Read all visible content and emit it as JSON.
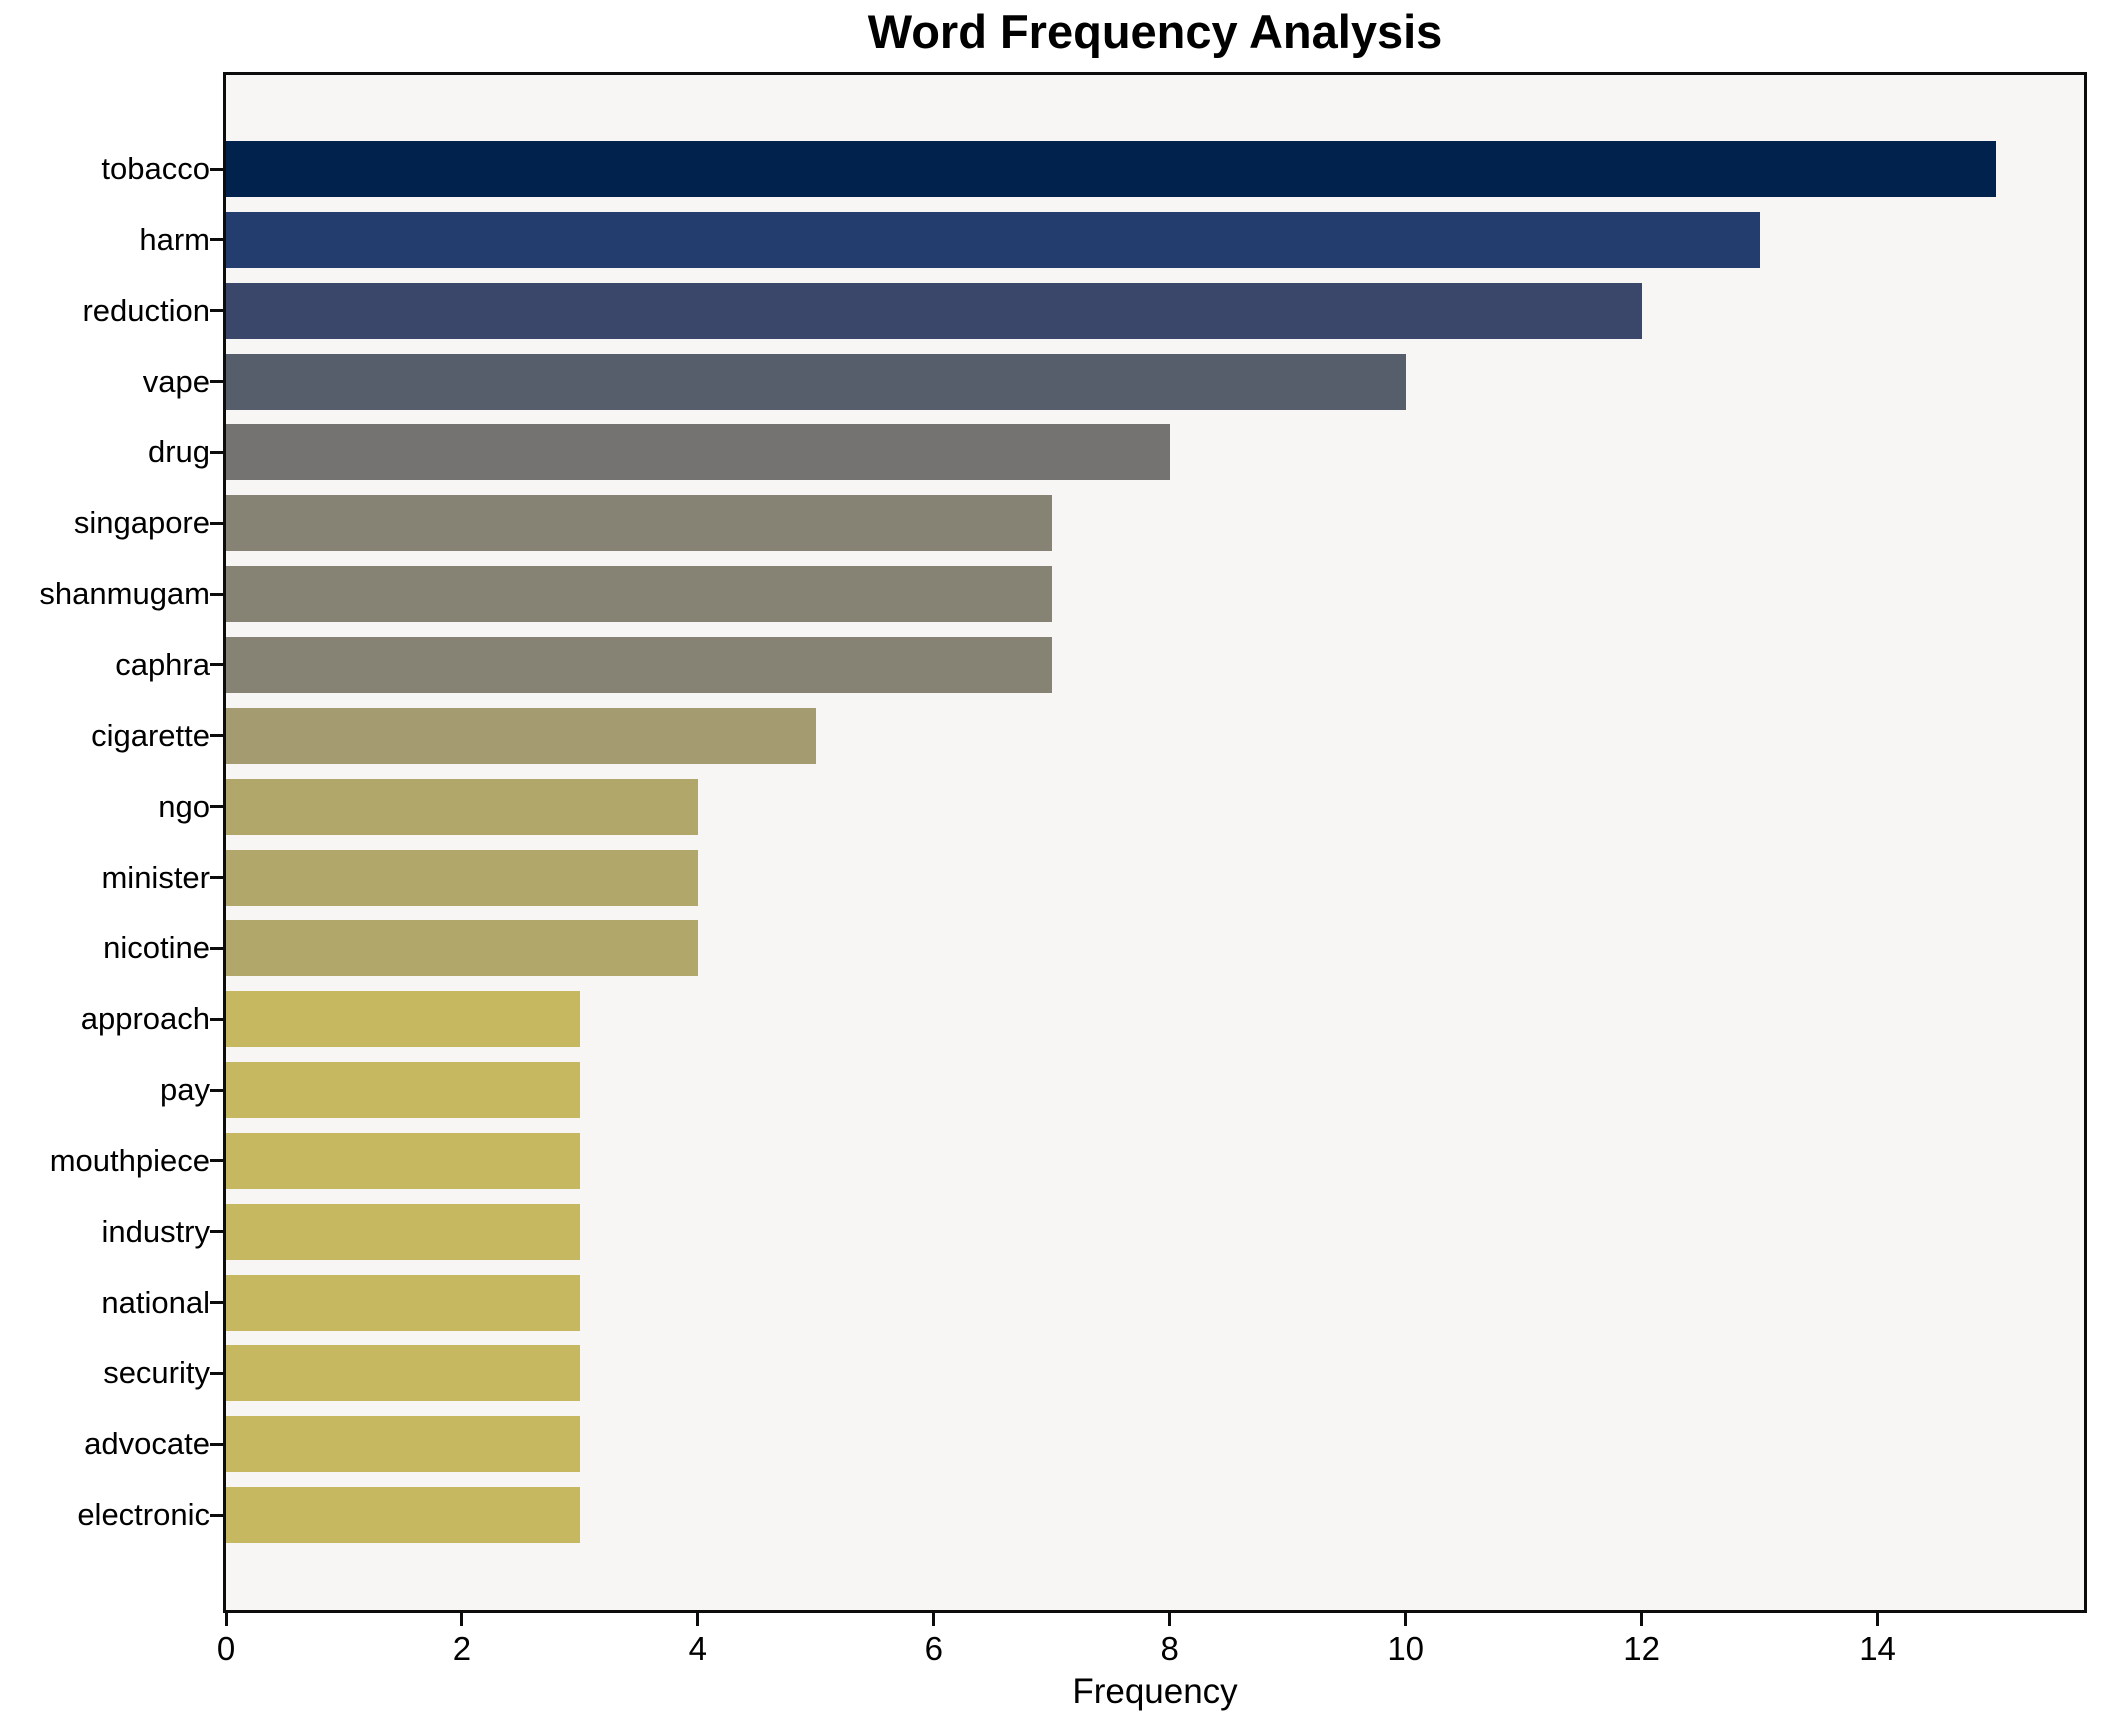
{
  "title": "Word Frequency Analysis",
  "chart_data": {
    "type": "bar",
    "orientation": "horizontal",
    "title": "Word Frequency Analysis",
    "xlabel": "Frequency",
    "ylabel": "",
    "categories": [
      "tobacco",
      "harm",
      "reduction",
      "vape",
      "drug",
      "singapore",
      "shanmugam",
      "caphra",
      "cigarette",
      "ngo",
      "minister",
      "nicotine",
      "approach",
      "pay",
      "mouthpiece",
      "industry",
      "national",
      "security",
      "advocate",
      "electronic"
    ],
    "values": [
      15,
      13,
      12,
      10,
      8,
      7,
      7,
      7,
      5,
      4,
      4,
      4,
      3,
      3,
      3,
      3,
      3,
      3,
      3,
      3
    ],
    "bar_colors": [
      "#02224e",
      "#233e6e",
      "#3a476b",
      "#565d6b",
      "#747371",
      "#868274",
      "#868274",
      "#868274",
      "#a49b70",
      "#b1a76b",
      "#b1a76b",
      "#b1a76b",
      "#c6b860",
      "#c6b860",
      "#c6b860",
      "#c6b860",
      "#c6b860",
      "#c6b860",
      "#c6b860",
      "#c6b860"
    ],
    "colormap": "cividis-reversed-by-value",
    "xlim": [
      0,
      15.75
    ],
    "xticks": [
      0,
      2,
      4,
      6,
      8,
      10,
      12,
      14
    ],
    "grid": false,
    "legend": "none",
    "plot_background": "#f7f6f4",
    "figure_background": "#ffffff",
    "axis_color": "#0c0c0c"
  }
}
